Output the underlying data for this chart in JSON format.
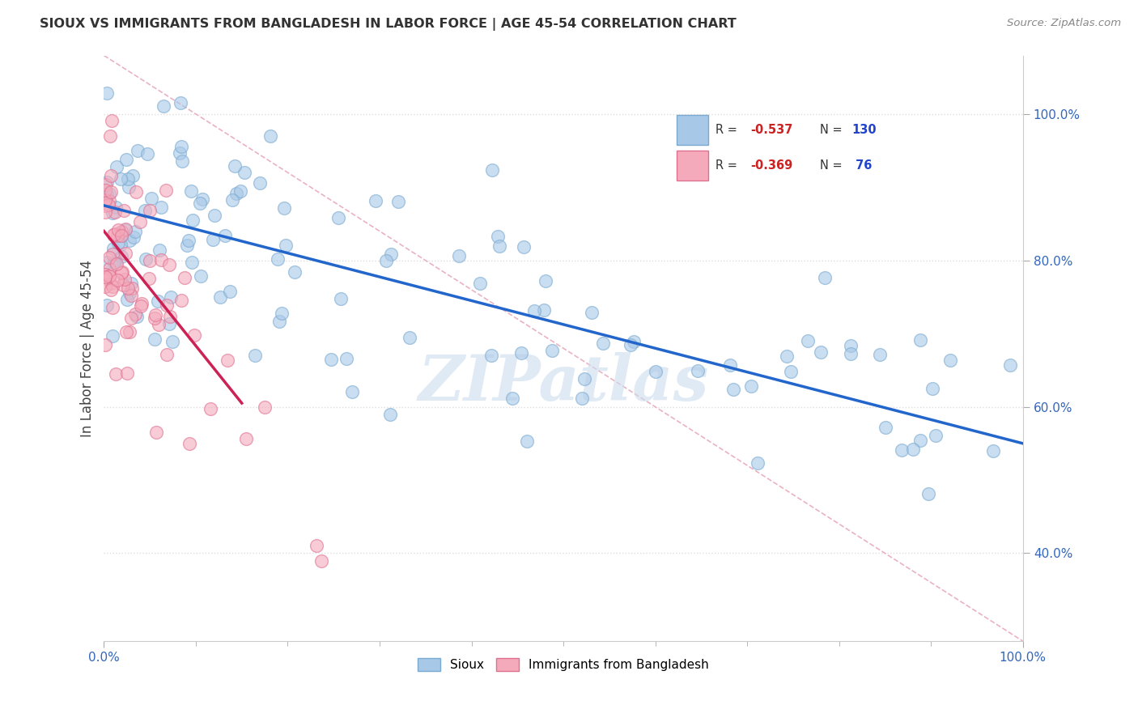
{
  "title": "SIOUX VS IMMIGRANTS FROM BANGLADESH IN LABOR FORCE | AGE 45-54 CORRELATION CHART",
  "source": "Source: ZipAtlas.com",
  "ylabel": "In Labor Force | Age 45-54",
  "watermark": "ZIPatlas",
  "legend_blue_label": "Sioux",
  "legend_pink_label": "Immigrants from Bangladesh",
  "blue_R": "-0.537",
  "blue_N": "130",
  "pink_R": "-0.369",
  "pink_N": " 76",
  "xlim": [
    0,
    100
  ],
  "ylim": [
    28,
    108
  ],
  "blue_line_x": [
    0,
    100
  ],
  "blue_line_y": [
    87.5,
    55.0
  ],
  "pink_line_x": [
    0,
    15
  ],
  "pink_line_y": [
    84.0,
    60.5
  ],
  "diag_line_x": [
    0,
    100
  ],
  "diag_line_y": [
    108,
    28
  ],
  "blue_dot_color": "#A8C8E8",
  "blue_dot_edge": "#7AAAD0",
  "pink_dot_color": "#F4AABB",
  "pink_dot_edge": "#E07090",
  "blue_line_color": "#2266CC",
  "pink_line_color": "#CC2255",
  "diag_line_color": "#E8AABB",
  "background_color": "#FFFFFF",
  "title_color": "#333333",
  "source_color": "#888888",
  "watermark_color": "#CCDDEE",
  "grid_color": "#DDDDDD",
  "ytick_values": [
    40,
    60,
    80,
    100
  ],
  "xtick_values": [
    0,
    100
  ],
  "legend_R_color": "#CC2222",
  "legend_N_color": "#2244CC"
}
